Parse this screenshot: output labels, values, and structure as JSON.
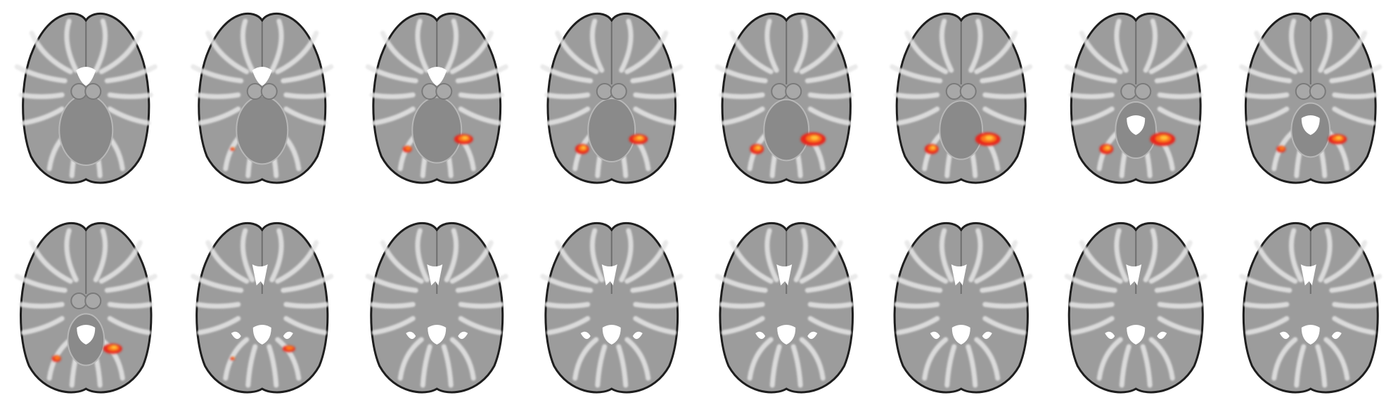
{
  "figure": {
    "rows": 2,
    "columns": 8,
    "brain_fill": "#9c9c9c",
    "brain_outline": "#1e1e1e",
    "gyrus_color": "#e6e6e6",
    "ventricle_color": "#ffffff",
    "activation_colors": [
      "#e8261a",
      "#ff7a1a",
      "#ffc43a"
    ],
    "slices": [
      {
        "index": 1,
        "activation": [
          "none",
          "none"
        ]
      },
      {
        "index": 2,
        "activation": [
          "tiny",
          "none"
        ]
      },
      {
        "index": 3,
        "activation": [
          "small",
          "medium"
        ]
      },
      {
        "index": 4,
        "activation": [
          "medium",
          "medium"
        ]
      },
      {
        "index": 5,
        "activation": [
          "medium",
          "large"
        ]
      },
      {
        "index": 6,
        "activation": [
          "medium",
          "large"
        ]
      },
      {
        "index": 7,
        "activation": [
          "medium",
          "large"
        ]
      },
      {
        "index": 8,
        "activation": [
          "small",
          "medium"
        ]
      },
      {
        "index": 9,
        "activation": [
          "small",
          "medium"
        ]
      },
      {
        "index": 10,
        "activation": [
          "tiny",
          "small"
        ]
      },
      {
        "index": 11,
        "activation": [
          "none",
          "none"
        ]
      },
      {
        "index": 12,
        "activation": [
          "none",
          "none"
        ]
      },
      {
        "index": 13,
        "activation": [
          "none",
          "none"
        ]
      },
      {
        "index": 14,
        "activation": [
          "none",
          "none"
        ]
      },
      {
        "index": 15,
        "activation": [
          "none",
          "none"
        ]
      },
      {
        "index": 16,
        "activation": [
          "none",
          "none"
        ]
      }
    ]
  }
}
